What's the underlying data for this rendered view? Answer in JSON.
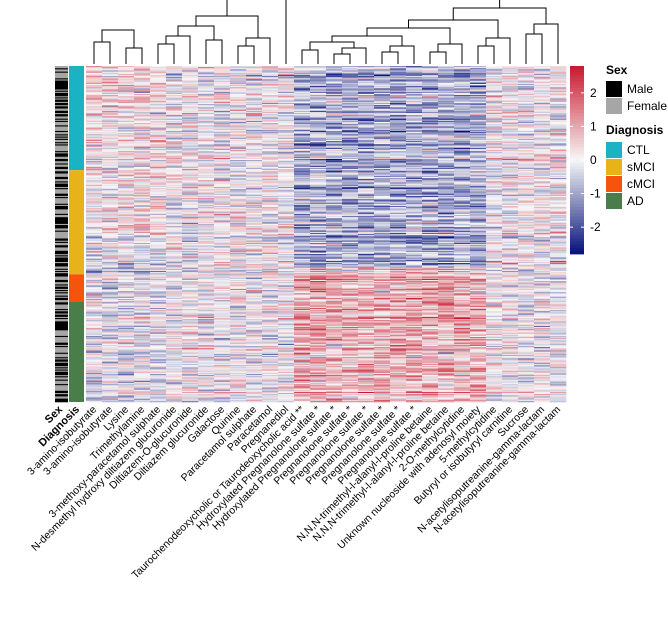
{
  "chart_data": {
    "type": "heatmap",
    "title": "",
    "n_rows": 300,
    "columns": [
      "3-amino-isobutyrate",
      "3-amino-isobutyrate",
      "Lysine",
      "Trimethylamine",
      "3-methoxy-paracetamol sulphate",
      "N-desmethyl hydroxy diltiazem glucuronide",
      "Diltiazem-O-glucuronide",
      "Diltiazem glucuronide",
      "Galactose",
      "Quinine",
      "Paracetamol sulphate",
      "Paracetamol",
      "Pregnanediol",
      "Taurochenodeoxycholic or Taurodeoxycholic acid **",
      "Hydroxylated Pregnanolone sulfate *",
      "Hydroxylated Pregnanolone sulfate *",
      "Pregnanolone sulfate *",
      "Pregnanolone sulfate *",
      "Pregnanolone sulfate *",
      "Pregnanolone sulfate *",
      "Pregnanolone sulfate *",
      "N,N,N-trimethyl-l-alanyl-l-proline betaine",
      "N,N,N-trimethyl-l-alanyl-l-proline betaine",
      "2-O-methylcytidine",
      "Unknown nucleoside with adenosyl moiety",
      "5-methylcytidine",
      "Butyryl or isobutyryl carnitine",
      "Sucrose",
      "N-acetylisoputreanine-gamma-lactam",
      "N-acetylisoputreanine-gamma-lactam"
    ],
    "annotation_tracks": [
      "Sex",
      "Diagnosis"
    ],
    "legend": {
      "color_scale": {
        "title": "",
        "ticks": [
          2,
          1,
          0,
          -1,
          -2
        ],
        "min": -2.8,
        "max": 2.8,
        "low_color": "#06117a",
        "mid_color": "#f7f7f7",
        "high_color": "#c8182d"
      },
      "sex": {
        "title": "Sex",
        "items": [
          {
            "label": "Male",
            "color": "#000000"
          },
          {
            "label": "Female",
            "color": "#a6a6a6"
          }
        ]
      },
      "diagnosis": {
        "title": "Diagnosis",
        "items": [
          {
            "label": "CTL",
            "color": "#1bb3c4"
          },
          {
            "label": "sMCI",
            "color": "#e8b31a"
          },
          {
            "label": "cMCI",
            "color": "#f5540c"
          },
          {
            "label": "AD",
            "color": "#4a7d4a"
          }
        ]
      }
    },
    "diagnosis_groups": [
      {
        "label": "CTL",
        "fraction": 0.31
      },
      {
        "label": "sMCI",
        "fraction": 0.31
      },
      {
        "label": "cMCI",
        "fraction": 0.08
      },
      {
        "label": "AD",
        "fraction": 0.3
      }
    ]
  }
}
